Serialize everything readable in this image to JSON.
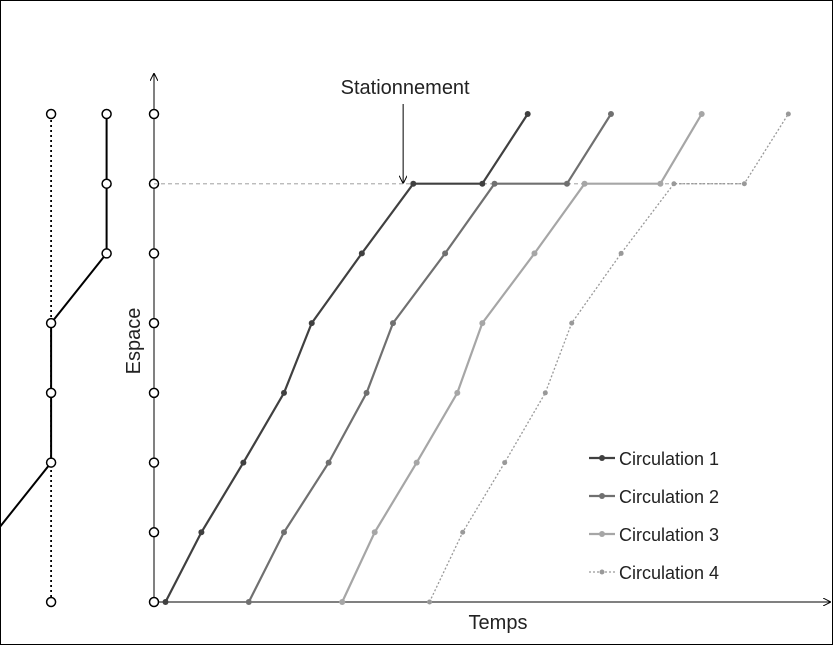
{
  "chart_data": {
    "type": "line",
    "xlabel": "Temps",
    "ylabel": "Espace",
    "annotation": "Stationnement",
    "grid": false,
    "legend_position": "bottom-right",
    "stations": [
      0,
      1,
      2,
      3,
      4,
      5,
      6,
      7
    ],
    "x": {
      "min": 0,
      "max": 100
    },
    "y": {
      "min": 0,
      "max": 7
    },
    "track_lines": [
      {
        "name": "",
        "style": "dotted",
        "color": "#000000",
        "points": [
          {
            "x": -15.2,
            "y": 0
          },
          {
            "x": -15.2,
            "y": 7
          }
        ]
      },
      {
        "name": "",
        "style": "solid",
        "color": "#000000",
        "points": [
          {
            "x": -23.4,
            "y": 0
          },
          {
            "x": -23.4,
            "y": 1
          },
          {
            "x": -15.2,
            "y": 2
          },
          {
            "x": -15.2,
            "y": 3
          },
          {
            "x": -15.2,
            "y": 4
          },
          {
            "x": -7.0,
            "y": 5
          },
          {
            "x": -7.0,
            "y": 6
          },
          {
            "x": -7.0,
            "y": 7
          }
        ]
      }
    ],
    "series": [
      {
        "name": "Circulation 1",
        "color": "#404040",
        "style": "solid",
        "points": [
          {
            "x": 1.7,
            "y": 0
          },
          {
            "x": 7.0,
            "y": 1
          },
          {
            "x": 13.2,
            "y": 2
          },
          {
            "x": 19.2,
            "y": 3
          },
          {
            "x": 23.3,
            "y": 4
          },
          {
            "x": 30.7,
            "y": 5
          },
          {
            "x": 38.3,
            "y": 6
          },
          {
            "x": 48.5,
            "y": 6
          },
          {
            "x": 55.2,
            "y": 7
          }
        ]
      },
      {
        "name": "Circulation 2",
        "color": "#707070",
        "style": "solid",
        "points": [
          {
            "x": 14.0,
            "y": 0
          },
          {
            "x": 19.2,
            "y": 1
          },
          {
            "x": 25.8,
            "y": 2
          },
          {
            "x": 31.4,
            "y": 3
          },
          {
            "x": 35.3,
            "y": 4
          },
          {
            "x": 43.0,
            "y": 5
          },
          {
            "x": 50.3,
            "y": 6
          },
          {
            "x": 61.0,
            "y": 6
          },
          {
            "x": 67.5,
            "y": 7
          }
        ]
      },
      {
        "name": "Circulation 3",
        "color": "#a6a6a6",
        "style": "solid",
        "points": [
          {
            "x": 27.8,
            "y": 0
          },
          {
            "x": 32.6,
            "y": 1
          },
          {
            "x": 38.8,
            "y": 2
          },
          {
            "x": 44.8,
            "y": 3
          },
          {
            "x": 48.5,
            "y": 4
          },
          {
            "x": 56.2,
            "y": 5
          },
          {
            "x": 63.6,
            "y": 6
          },
          {
            "x": 74.8,
            "y": 6
          },
          {
            "x": 80.9,
            "y": 7
          }
        ]
      },
      {
        "name": "Circulation 4",
        "color": "#999999",
        "style": "dotted",
        "points": [
          {
            "x": 40.7,
            "y": 0
          },
          {
            "x": 45.6,
            "y": 1
          },
          {
            "x": 51.8,
            "y": 2
          },
          {
            "x": 57.8,
            "y": 3
          },
          {
            "x": 61.7,
            "y": 4
          },
          {
            "x": 69.0,
            "y": 5
          },
          {
            "x": 76.8,
            "y": 6
          },
          {
            "x": 87.2,
            "y": 6
          },
          {
            "x": 93.7,
            "y": 7
          }
        ]
      }
    ]
  }
}
